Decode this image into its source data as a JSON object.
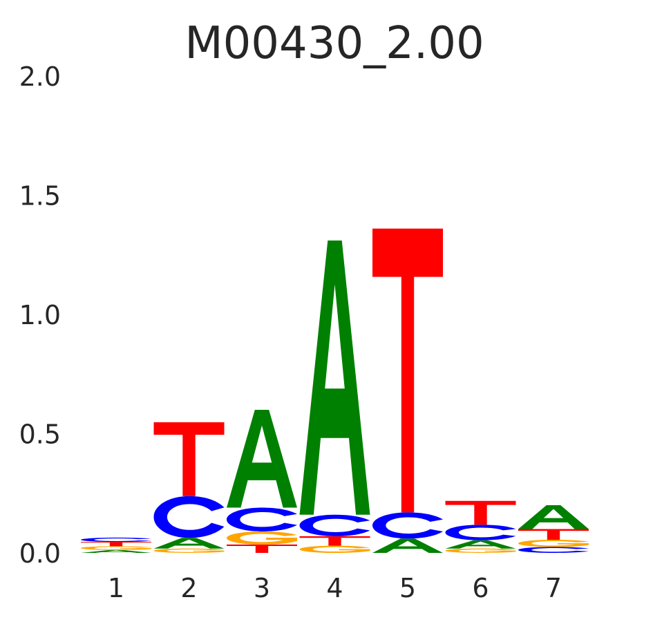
{
  "chart_data": {
    "type": "sequence-logo",
    "title": "M00430_2.00",
    "xlabel": "",
    "ylabel": "",
    "ylim": [
      0,
      2
    ],
    "yticks": [
      "0.0",
      "0.5",
      "1.0",
      "1.5",
      "2.0"
    ],
    "ytick_values": [
      0,
      0.5,
      1.0,
      1.5,
      2.0
    ],
    "xticks": [
      "1",
      "2",
      "3",
      "4",
      "5",
      "6",
      "7"
    ],
    "grid": false,
    "colors": {
      "A": "#008000",
      "C": "#0000ff",
      "G": "#ffa500",
      "T": "#ff0000"
    },
    "positions": [
      {
        "position": "1",
        "stack": [
          {
            "letter": "A",
            "height": 0.012
          },
          {
            "letter": "G",
            "height": 0.016
          },
          {
            "letter": "T",
            "height": 0.018
          },
          {
            "letter": "C",
            "height": 0.018
          }
        ]
      },
      {
        "position": "2",
        "stack": [
          {
            "letter": "G",
            "height": 0.018
          },
          {
            "letter": "A",
            "height": 0.045
          },
          {
            "letter": "C",
            "height": 0.175
          },
          {
            "letter": "T",
            "height": 0.31
          }
        ]
      },
      {
        "position": "3",
        "stack": [
          {
            "letter": "T",
            "height": 0.035
          },
          {
            "letter": "G",
            "height": 0.055
          },
          {
            "letter": "C",
            "height": 0.1
          },
          {
            "letter": "A",
            "height": 0.41
          }
        ]
      },
      {
        "position": "4",
        "stack": [
          {
            "letter": "G",
            "height": 0.03
          },
          {
            "letter": "T",
            "height": 0.04
          },
          {
            "letter": "C",
            "height": 0.09
          },
          {
            "letter": "A",
            "height": 1.15
          }
        ]
      },
      {
        "position": "5",
        "stack": [
          {
            "letter": "A",
            "height": 0.06
          },
          {
            "letter": "C",
            "height": 0.11
          },
          {
            "letter": "T",
            "height": 1.19
          }
        ]
      },
      {
        "position": "6",
        "stack": [
          {
            "letter": "G",
            "height": 0.018
          },
          {
            "letter": "A",
            "height": 0.035
          },
          {
            "letter": "C",
            "height": 0.065
          },
          {
            "letter": "T",
            "height": 0.1
          }
        ]
      },
      {
        "position": "7",
        "stack": [
          {
            "letter": "C",
            "height": 0.025
          },
          {
            "letter": "G",
            "height": 0.03
          },
          {
            "letter": "T",
            "height": 0.045
          },
          {
            "letter": "A",
            "height": 0.1
          }
        ]
      }
    ]
  }
}
